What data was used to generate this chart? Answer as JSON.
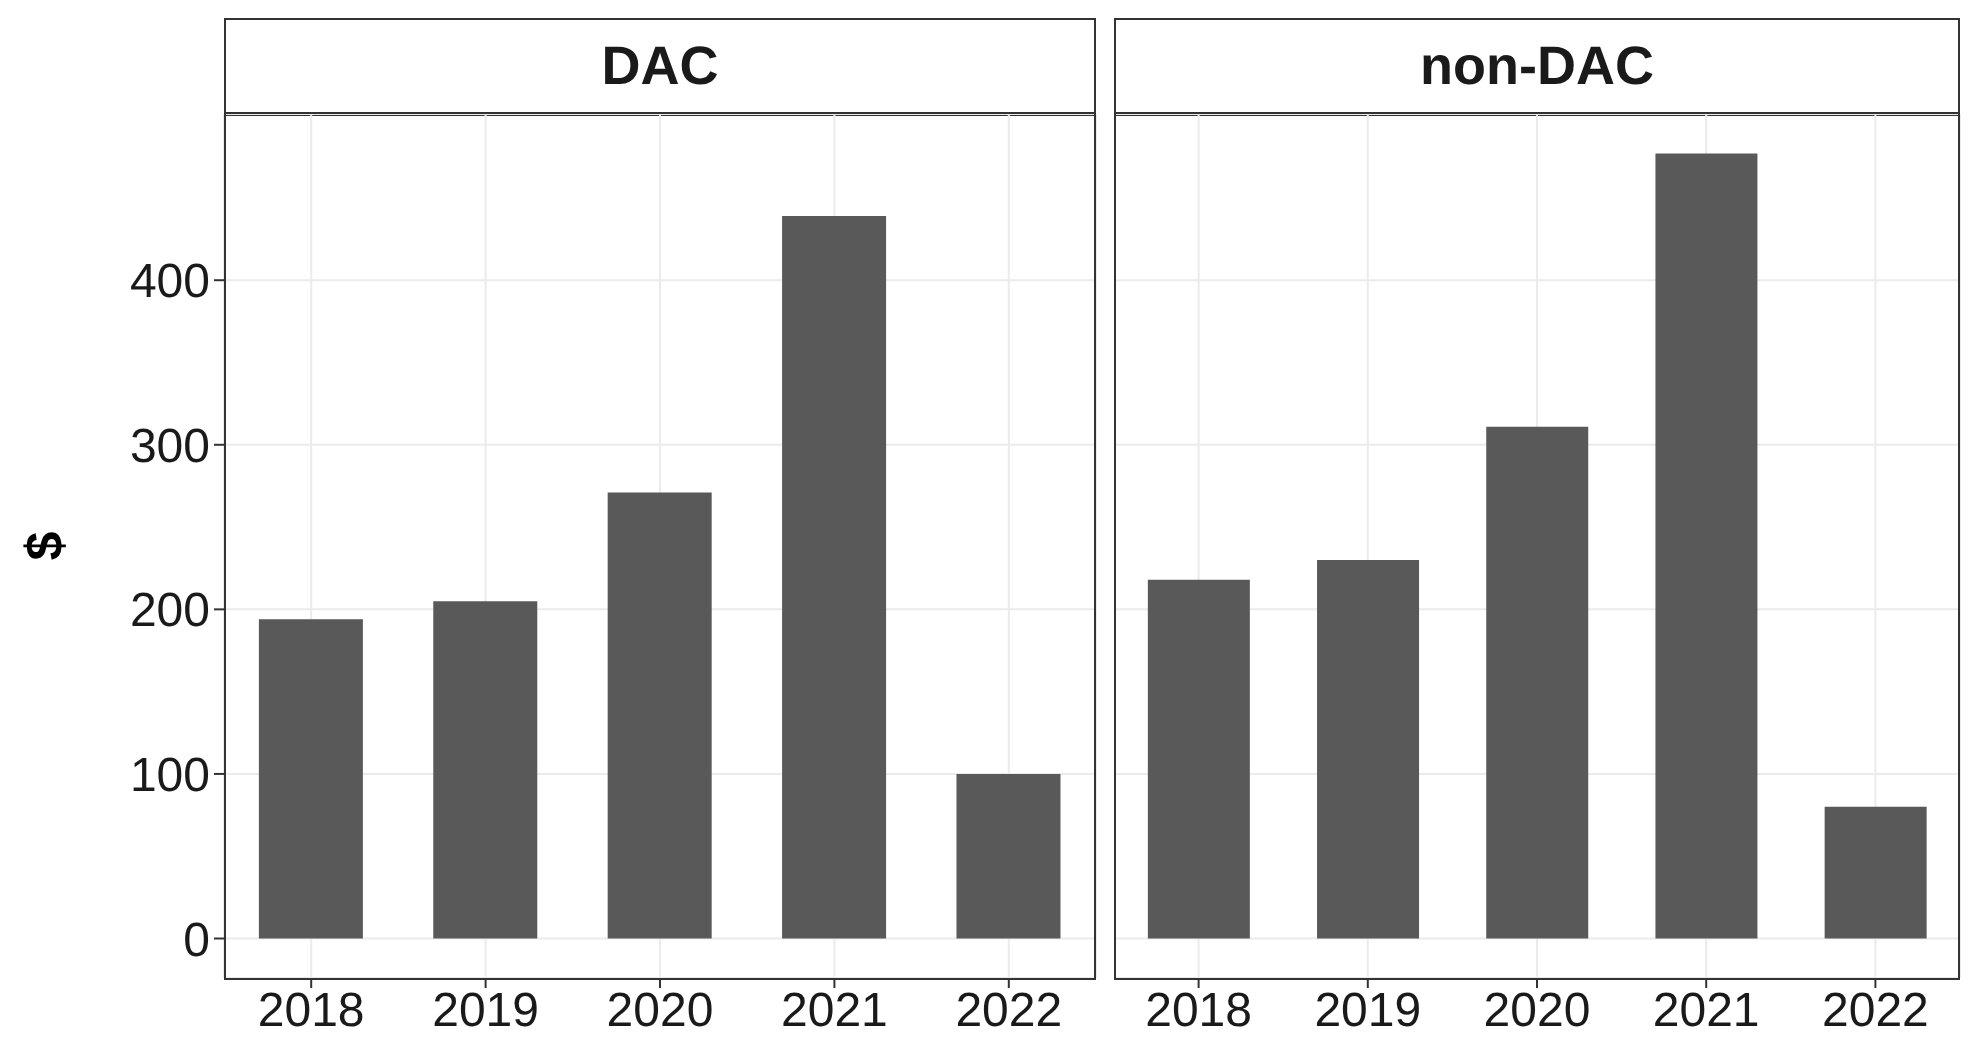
{
  "chart_data": [
    {
      "type": "bar",
      "title": "DAC",
      "ylabel": "$",
      "categories": [
        "2018",
        "2019",
        "2020",
        "2021",
        "2022"
      ],
      "values": [
        194,
        205,
        271,
        439,
        100
      ],
      "color": "#595959",
      "ylim": [
        -24,
        501
      ],
      "yticks": [
        0,
        100,
        200,
        300,
        400
      ],
      "grid": true
    },
    {
      "type": "bar",
      "title": "non-DAC",
      "categories": [
        "2018",
        "2019",
        "2020",
        "2021",
        "2022"
      ],
      "values": [
        218,
        230,
        311,
        477,
        80
      ],
      "color": "#595959",
      "ylim": [
        -24,
        501
      ],
      "yticks": [
        0,
        100,
        200,
        300,
        400
      ],
      "grid": true,
      "tick_labels": "x"
    }
  ]
}
